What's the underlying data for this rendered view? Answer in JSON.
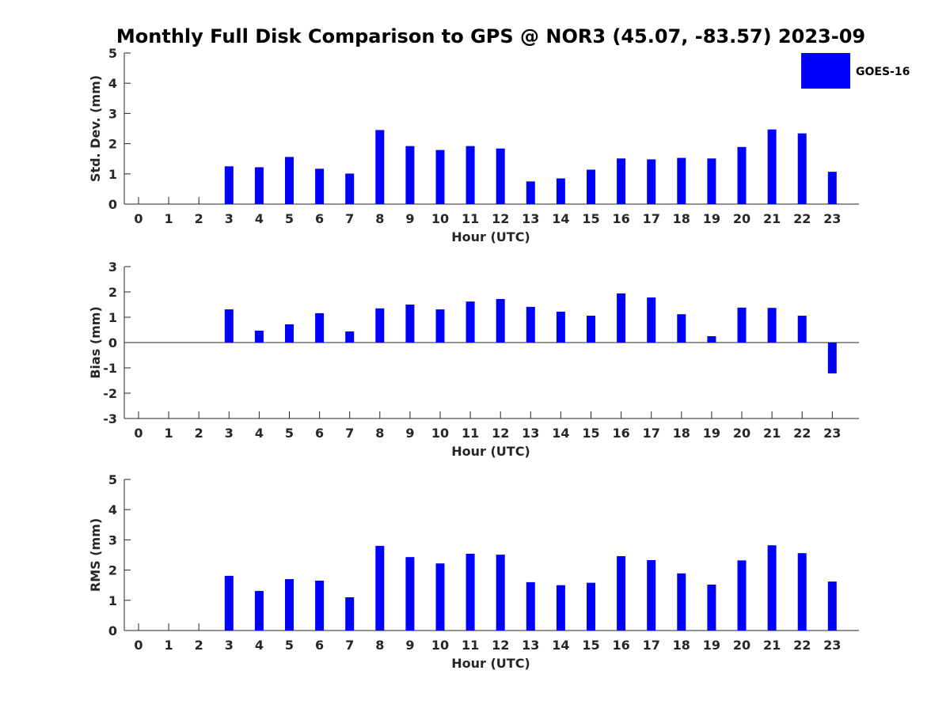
{
  "colors": {
    "bar": "#0000ff",
    "axis": "#262626",
    "background": "#ffffff"
  },
  "chart_data": {
    "title": "Monthly Full Disk Comparison to GPS @ NOR3 (45.07, -83.57) 2023-09",
    "legend": {
      "labels": [
        "GOES-16"
      ],
      "placement": "top-right"
    },
    "panels": [
      {
        "type": "bar",
        "ylabel": "Std. Dev. (mm)",
        "xlabel": "Hour (UTC)",
        "ylim": [
          0,
          5
        ],
        "yticks": [
          "0",
          "1",
          "2",
          "3",
          "4",
          "5"
        ],
        "grid": false,
        "categories": [
          "0",
          "1",
          "2",
          "3",
          "4",
          "5",
          "6",
          "7",
          "8",
          "9",
          "10",
          "11",
          "12",
          "13",
          "14",
          "15",
          "16",
          "17",
          "18",
          "19",
          "20",
          "21",
          "22",
          "23"
        ],
        "series": [
          {
            "name": "GOES-16",
            "values": [
              null,
              null,
              null,
              1.25,
              1.22,
              1.56,
              1.17,
              1.01,
              2.45,
              1.92,
              1.79,
              1.92,
              1.84,
              0.75,
              0.85,
              1.14,
              1.51,
              1.48,
              1.53,
              1.51,
              1.89,
              2.47,
              2.34,
              1.07
            ]
          }
        ]
      },
      {
        "type": "bar",
        "ylabel": "Bias (mm)",
        "xlabel": "Hour (UTC)",
        "ylim": [
          -3,
          3
        ],
        "yticks": [
          "-3",
          "-2",
          "-1",
          "0",
          "1",
          "2",
          "3"
        ],
        "grid": false,
        "zero_line": true,
        "categories": [
          "0",
          "1",
          "2",
          "3",
          "4",
          "5",
          "6",
          "7",
          "8",
          "9",
          "10",
          "11",
          "12",
          "13",
          "14",
          "15",
          "16",
          "17",
          "18",
          "19",
          "20",
          "21",
          "22",
          "23"
        ],
        "series": [
          {
            "name": "GOES-16",
            "values": [
              null,
              null,
              null,
              1.31,
              0.47,
              0.72,
              1.16,
              0.44,
              1.35,
              1.5,
              1.31,
              1.62,
              1.72,
              1.41,
              1.22,
              1.06,
              1.94,
              1.78,
              1.12,
              0.25,
              1.38,
              1.37,
              1.06,
              -1.22
            ]
          }
        ]
      },
      {
        "type": "bar",
        "ylabel": "RMS (mm)",
        "xlabel": "Hour (UTC)",
        "ylim": [
          0,
          5
        ],
        "yticks": [
          "0",
          "1",
          "2",
          "3",
          "4",
          "5"
        ],
        "grid": false,
        "categories": [
          "0",
          "1",
          "2",
          "3",
          "4",
          "5",
          "6",
          "7",
          "8",
          "9",
          "10",
          "11",
          "12",
          "13",
          "14",
          "15",
          "16",
          "17",
          "18",
          "19",
          "20",
          "21",
          "22",
          "23"
        ],
        "series": [
          {
            "name": "GOES-16",
            "values": [
              null,
              null,
              null,
              1.81,
              1.31,
              1.7,
              1.65,
              1.1,
              2.8,
              2.43,
              2.22,
              2.54,
              2.51,
              1.6,
              1.5,
              1.58,
              2.46,
              2.33,
              1.89,
              1.52,
              2.32,
              2.82,
              2.56,
              1.62
            ]
          }
        ]
      }
    ]
  }
}
